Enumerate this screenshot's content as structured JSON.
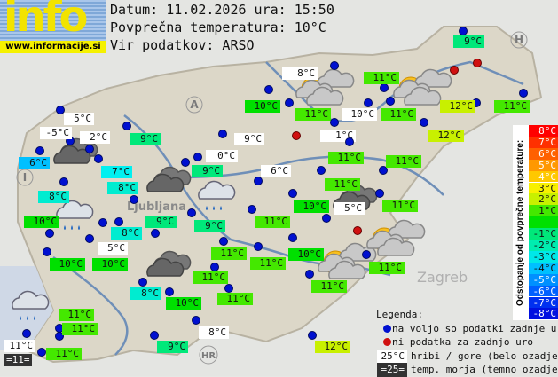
{
  "logo": {
    "text": "info",
    "url": "www.informacije.si"
  },
  "header": {
    "date_line": "Datum: 11.02.2026 ura: 15:50",
    "avg_line": "Povprečna temperatura: 10°C",
    "source_line": "Vir podatkov: ARSO"
  },
  "map_labels": {
    "austria": "A",
    "italy": "I",
    "hungary": "H",
    "croatia": "HR",
    "zagreb": "Zagreb",
    "ljubljana": "Ljubljana"
  },
  "colors": {
    "hills": "#ffffff",
    "sea": "#333333",
    "station_ok": "#0010d0",
    "station_missing": "#d01010",
    "d+2": "#c8f000",
    "d+1": "#44e800",
    "d0": "#00e000",
    "d-1": "#00e87a",
    "d-2": "#00ecd0",
    "d-3": "#00f0f0",
    "d-4": "#00c0ff"
  },
  "stations": [
    {
      "temp": "9°C",
      "kind": "-1"
    },
    {
      "temp": "8°C",
      "kind": "hill"
    },
    {
      "temp": "11°C",
      "kind": "+1"
    },
    {
      "temp": "10°C",
      "kind": "0"
    },
    {
      "temp": "11°C",
      "kind": "+1"
    },
    {
      "temp": "10°C",
      "kind": "hill"
    },
    {
      "temp": "11°C",
      "kind": "+1"
    },
    {
      "temp": "12°C",
      "kind": "+2"
    },
    {
      "temp": "11°C",
      "kind": "+1"
    },
    {
      "temp": "12°C",
      "kind": "+2"
    },
    {
      "temp": "1°C",
      "kind": "hill"
    },
    {
      "temp": "5°C",
      "kind": "hill"
    },
    {
      "temp": "-5°C",
      "kind": "hill"
    },
    {
      "temp": "2°C",
      "kind": "hill"
    },
    {
      "temp": "9°C",
      "kind": "-1"
    },
    {
      "temp": "9°C",
      "kind": "hill"
    },
    {
      "temp": "6°C",
      "kind": "-4"
    },
    {
      "temp": "7°C",
      "kind": "-3"
    },
    {
      "temp": "0°C",
      "kind": "hill"
    },
    {
      "temp": "9°C",
      "kind": "-1"
    },
    {
      "temp": "6°C",
      "kind": "hill"
    },
    {
      "temp": "11°C",
      "kind": "+1"
    },
    {
      "temp": "11°C",
      "kind": "+1"
    },
    {
      "temp": "8°C",
      "kind": "-2"
    },
    {
      "temp": "8°C",
      "kind": "-2"
    },
    {
      "temp": "11°C",
      "kind": "+1"
    },
    {
      "temp": "10°C",
      "kind": "0"
    },
    {
      "temp": "5°C",
      "kind": "hill"
    },
    {
      "temp": "11°C",
      "kind": "+1"
    },
    {
      "temp": "11°C",
      "kind": "+1"
    },
    {
      "temp": "10°C",
      "kind": "0"
    },
    {
      "temp": "9°C",
      "kind": "-1"
    },
    {
      "temp": "9°C",
      "kind": "-1"
    },
    {
      "temp": "8°C",
      "kind": "-2"
    },
    {
      "temp": "5°C",
      "kind": "hill"
    },
    {
      "temp": "10°C",
      "kind": "0"
    },
    {
      "temp": "10°C",
      "kind": "0"
    },
    {
      "temp": "11°C",
      "kind": "+1"
    },
    {
      "temp": "11°C",
      "kind": "+1"
    },
    {
      "temp": "10°C",
      "kind": "0"
    },
    {
      "temp": "11°C",
      "kind": "+1"
    },
    {
      "temp": "11°C",
      "kind": "+1"
    },
    {
      "temp": "11°C",
      "kind": "+1"
    },
    {
      "temp": "8°C",
      "kind": "-2"
    },
    {
      "temp": "10°C",
      "kind": "0"
    },
    {
      "temp": "11°C",
      "kind": "+1"
    },
    {
      "temp": "11°C",
      "kind": "+1"
    },
    {
      "temp": "11°C",
      "kind": "+1"
    },
    {
      "temp": "11°C",
      "kind": "hill"
    },
    {
      "temp": "=11=",
      "kind": "sea"
    },
    {
      "temp": "11°C",
      "kind": "+1"
    },
    {
      "temp": "9°C",
      "kind": "-1"
    },
    {
      "temp": "8°C",
      "kind": "hill"
    },
    {
      "temp": "12°C",
      "kind": "+2"
    }
  ],
  "weather_icons": [
    "partly-sunny",
    "partly-sunny",
    "partly-sunny",
    "partly-sunny",
    "overcast",
    "overcast",
    "overcast",
    "overcast",
    "rain",
    "rain",
    "rain"
  ],
  "scale": {
    "title": "Odstopanje od povprečne temperature:",
    "rows": [
      {
        "label": "8°C",
        "color": "#ff0000"
      },
      {
        "label": "7°C",
        "color": "#ff3000"
      },
      {
        "label": "6°C",
        "color": "#ff6000"
      },
      {
        "label": "5°C",
        "color": "#ff9800"
      },
      {
        "label": "4°C",
        "color": "#ffc800"
      },
      {
        "label": "3°C",
        "color": "#f8f000"
      },
      {
        "label": "2°C",
        "color": "#c8f000"
      },
      {
        "label": "1°C",
        "color": "#44e800"
      },
      {
        "label": "",
        "color": "#00e000"
      },
      {
        "label": "-1°C",
        "color": "#00e87a"
      },
      {
        "label": "-2°C",
        "color": "#00ecb0"
      },
      {
        "label": "-3°C",
        "color": "#00e8e8"
      },
      {
        "label": "-4°C",
        "color": "#00c0ff"
      },
      {
        "label": "-5°C",
        "color": "#0090ff"
      },
      {
        "label": "-6°C",
        "color": "#0060ff"
      },
      {
        "label": "-7°C",
        "color": "#0030f0"
      },
      {
        "label": "-8°C",
        "color": "#0010e0"
      }
    ]
  },
  "legend": {
    "title": "Legenda:",
    "ok": "na voljo so podatki zadnje ure",
    "missing": "ni podatka za zadnjo uro",
    "hill_sample": "25°C",
    "hill": "hribi / gore (belo ozadje)",
    "sea_sample": "=25=",
    "sea": "temp. morja (temno ozadje)"
  }
}
